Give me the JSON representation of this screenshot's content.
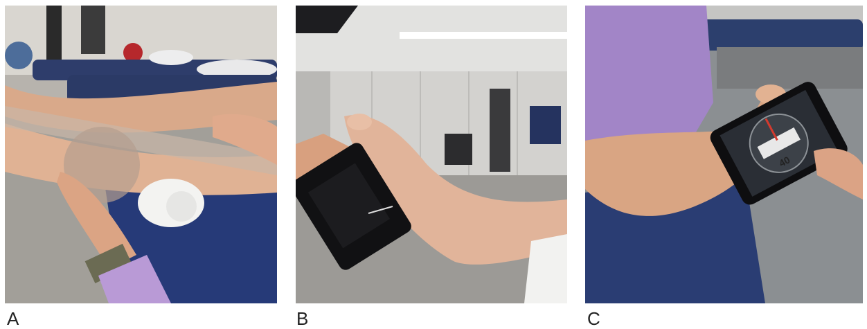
{
  "panels": [
    {
      "label": "A"
    },
    {
      "label": "B"
    },
    {
      "label": "C"
    }
  ],
  "phone_reading_c": "40"
}
